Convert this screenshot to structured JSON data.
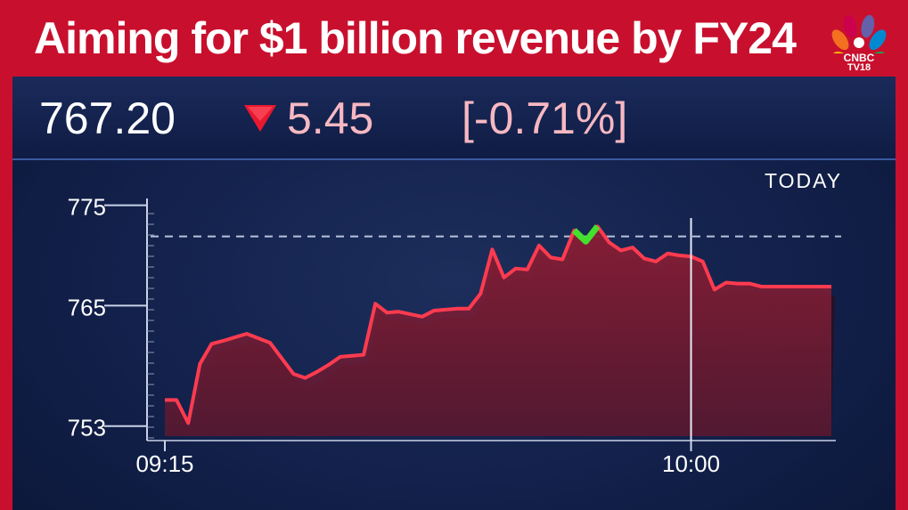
{
  "headline": "Aiming for $1 billion revenue by FY24",
  "logo": {
    "line1": "CNBC",
    "line2": "TV18",
    "icon": "peacock-logo-icon"
  },
  "quote": {
    "price": "767.20",
    "change": "5.45",
    "percent": "[-0.71%]",
    "direction_icon": "down-triangle-icon"
  },
  "period_label": "TODAY",
  "colors": {
    "brand_red": "#c8102e",
    "line": "#ff3b4f",
    "up_segment": "#44e02e",
    "background": "#12204a"
  },
  "chart_data": {
    "type": "area",
    "title": "",
    "xlabel": "",
    "ylabel": "",
    "ylim": [
      752,
      775.5
    ],
    "yticks": [
      775,
      765,
      753
    ],
    "ytick_labels": [
      "775",
      "765",
      "753"
    ],
    "xtick_labels": [
      "09:15",
      "10:00"
    ],
    "x_range_minutes": [
      0,
      57
    ],
    "x_tick_minutes": [
      0,
      45
    ],
    "reference_line": 771.9,
    "series": [
      {
        "values_x_minutes": [
          0,
          1,
          2,
          3,
          4,
          5,
          7,
          9,
          11,
          12,
          13,
          14,
          15,
          16,
          17,
          18,
          19,
          20,
          22,
          23,
          24,
          25,
          26,
          27,
          28,
          29,
          30,
          31,
          32,
          33,
          34,
          35,
          36,
          37,
          38,
          39,
          40,
          41,
          42,
          43,
          44,
          45,
          46,
          47,
          48,
          49,
          50,
          51,
          52,
          53,
          54,
          55,
          56,
          57
        ],
        "values_y": [
          755.6,
          755.6,
          753.3,
          759.2,
          761.2,
          761.5,
          762.2,
          761.3,
          758.2,
          757.8,
          758.4,
          759.1,
          759.9,
          760.0,
          760.1,
          765.2,
          764.3,
          764.4,
          763.9,
          764.5,
          764.6,
          764.7,
          764.7,
          766.2,
          770.6,
          767.8,
          768.7,
          768.6,
          771.0,
          769.8,
          769.6,
          772.5,
          771.4,
          772.9,
          771.3,
          770.5,
          770.8,
          769.7,
          769.4,
          770.2,
          770.0,
          769.9,
          769.4,
          766.6,
          767.3,
          767.2,
          767.2,
          766.9,
          766.9,
          766.9,
          766.9,
          766.9,
          766.9,
          766.9
        ]
      }
    ]
  }
}
